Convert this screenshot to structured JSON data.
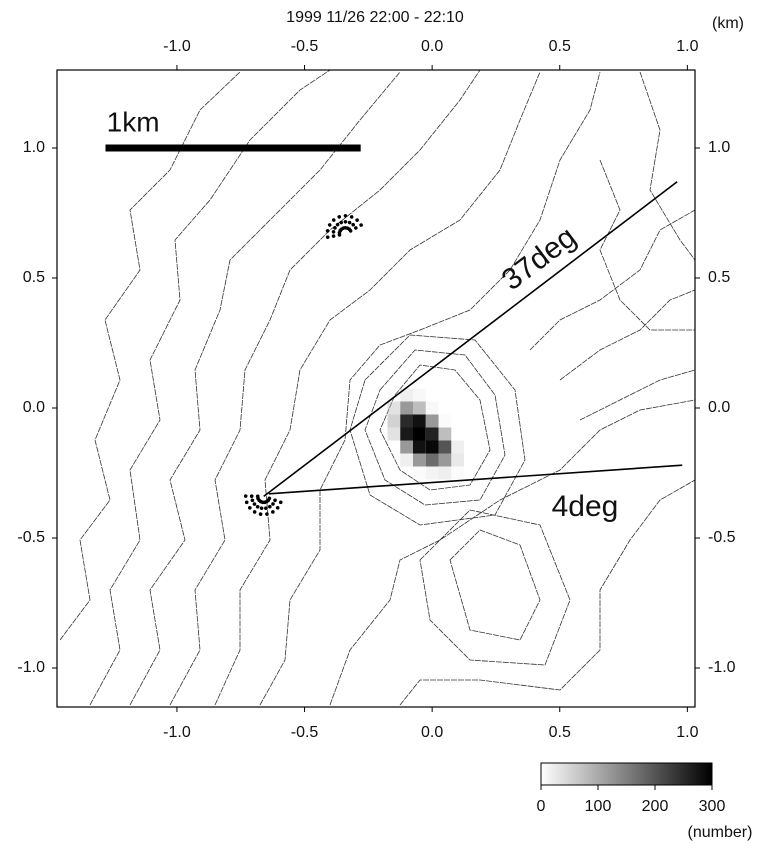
{
  "chart_data": {
    "type": "heatmap",
    "title": "1999 11/26 22:00 - 22:10",
    "unit_label": "(km)",
    "xlim": [
      -1.47,
      1.03
    ],
    "ylim": [
      -1.15,
      1.3
    ],
    "xticks": [
      {
        "value": -1.0,
        "label": "-1.0"
      },
      {
        "value": -0.5,
        "label": "-0.5"
      },
      {
        "value": 0,
        "label": "0.0"
      },
      {
        "value": 0.5,
        "label": "0.5"
      },
      {
        "value": 1.0,
        "label": "1.0"
      }
    ],
    "yticks": [
      {
        "value": 1.0,
        "label": "1.0"
      },
      {
        "value": 0.5,
        "label": "0.5"
      },
      {
        "value": 0,
        "label": "0.0"
      },
      {
        "value": -0.5,
        "label": "-0.5"
      },
      {
        "value": -1.0,
        "label": "-1.0"
      }
    ],
    "heatmap": {
      "x": [
        -0.2,
        -0.15,
        -0.1,
        -0.05,
        0,
        0.05,
        0.1
      ],
      "y": [
        0.05,
        0,
        -0.05,
        -0.1,
        -0.15,
        -0.2,
        -0.25
      ],
      "values": [
        [
          0,
          30,
          60,
          40,
          0,
          0,
          0
        ],
        [
          20,
          80,
          150,
          120,
          40,
          0,
          0
        ],
        [
          0,
          100,
          250,
          280,
          150,
          30,
          0
        ],
        [
          0,
          80,
          270,
          300,
          260,
          120,
          0
        ],
        [
          0,
          0,
          150,
          280,
          290,
          200,
          60
        ],
        [
          0,
          0,
          60,
          150,
          180,
          150,
          70
        ],
        [
          0,
          0,
          0,
          30,
          50,
          60,
          30
        ]
      ]
    },
    "lines": [
      {
        "label": "37deg",
        "x": [
          -0.66,
          0.96
        ],
        "y": [
          -0.34,
          0.87
        ]
      },
      {
        "label": "4deg",
        "x": [
          -0.64,
          0.98
        ],
        "y": [
          -0.33,
          -0.22
        ]
      }
    ],
    "scale_bar": {
      "label": "1km",
      "x": [
        -1.28,
        -0.28
      ],
      "y": 1.0
    },
    "vents": {
      "x": [
        -0.34,
        -0.66
      ],
      "y": [
        0.67,
        -0.34
      ]
    },
    "colorbar": {
      "lim": [
        0,
        300
      ],
      "ticks": [
        0,
        100,
        200,
        300
      ],
      "label": "(number)"
    }
  }
}
